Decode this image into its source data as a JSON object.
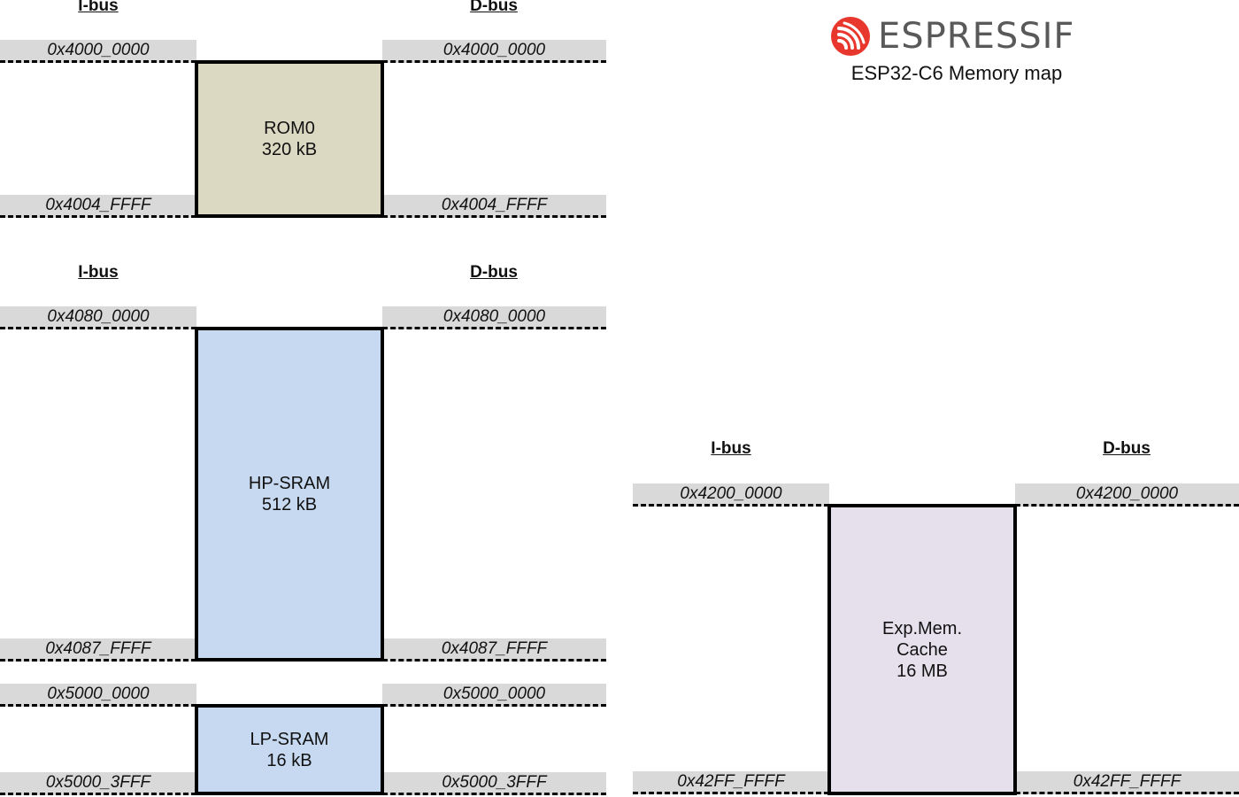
{
  "brand": {
    "logo_text": "ESPRESSIF",
    "subtitle": "ESP32-C6 Memory map",
    "logo_color": "#e8372c"
  },
  "colors": {
    "rom": "#dcd9c2",
    "hp_sram": "#c6d9f0",
    "lp_sram": "#c6d9f0",
    "exp_mem": "#e5e0ec",
    "address_band": "#d9d9d9"
  },
  "regions": [
    {
      "id": "rom0",
      "ibus_label": "I-bus",
      "dbus_label": "D-bus",
      "start_ibus": "0x4000_0000",
      "start_dbus": "0x4000_0000",
      "end_ibus": "0x4004_FFFF",
      "end_dbus": "0x4004_FFFF",
      "lines": [
        "ROM0",
        "320 kB"
      ]
    },
    {
      "id": "hp-sram",
      "ibus_label": "I-bus",
      "dbus_label": "D-bus",
      "start_ibus": "0x4080_0000",
      "start_dbus": "0x4080_0000",
      "end_ibus": "0x4087_FFFF",
      "end_dbus": "0x4087_FFFF",
      "lines": [
        "HP-SRAM",
        "512 kB"
      ]
    },
    {
      "id": "lp-sram",
      "start_ibus": "0x5000_0000",
      "start_dbus": "0x5000_0000",
      "end_ibus": "0x5000_3FFF",
      "end_dbus": "0x5000_3FFF",
      "lines": [
        "LP-SRAM",
        "16 kB"
      ]
    },
    {
      "id": "exp-mem",
      "ibus_label": "I-bus",
      "dbus_label": "D-bus",
      "start_ibus": "0x4200_0000",
      "start_dbus": "0x4200_0000",
      "end_ibus": "0x42FF_FFFF",
      "end_dbus": "0x42FF_FFFF",
      "lines": [
        "Exp.Mem.",
        "Cache",
        "16 MB"
      ]
    }
  ]
}
